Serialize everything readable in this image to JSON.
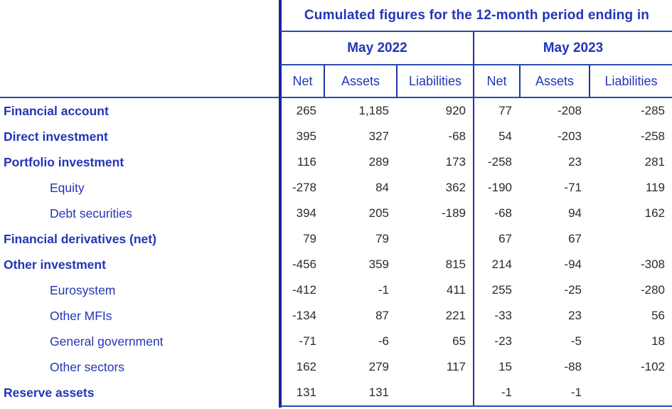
{
  "table": {
    "title": "Cumulated figures for the 12-month period ending in",
    "column_groups": [
      {
        "label": "May 2022"
      },
      {
        "label": "May 2023"
      }
    ],
    "sub_columns": [
      "Net",
      "Assets",
      "Liabilities",
      "Net",
      "Assets",
      "Liabilities"
    ],
    "rows": [
      {
        "label": "Financial account",
        "bold": true,
        "indent": false,
        "values": [
          "265",
          "1,185",
          "920",
          "77",
          "-208",
          "-285"
        ]
      },
      {
        "label": "Direct investment",
        "bold": true,
        "indent": false,
        "values": [
          "395",
          "327",
          "-68",
          "54",
          "-203",
          "-258"
        ]
      },
      {
        "label": "Portfolio investment",
        "bold": true,
        "indent": false,
        "values": [
          "116",
          "289",
          "173",
          "-258",
          "23",
          "281"
        ]
      },
      {
        "label": "Equity",
        "bold": false,
        "indent": true,
        "values": [
          "-278",
          "84",
          "362",
          "-190",
          "-71",
          "119"
        ]
      },
      {
        "label": "Debt securities",
        "bold": false,
        "indent": true,
        "values": [
          "394",
          "205",
          "-189",
          "-68",
          "94",
          "162"
        ]
      },
      {
        "label": "Financial derivatives (net)",
        "bold": true,
        "indent": false,
        "values": [
          "79",
          "79",
          "",
          "67",
          "67",
          ""
        ]
      },
      {
        "label": "Other investment",
        "bold": true,
        "indent": false,
        "values": [
          "-456",
          "359",
          "815",
          "214",
          "-94",
          "-308"
        ]
      },
      {
        "label": "Eurosystem",
        "bold": false,
        "indent": true,
        "values": [
          "-412",
          "-1",
          "411",
          "255",
          "-25",
          "-280"
        ]
      },
      {
        "label": "Other MFIs",
        "bold": false,
        "indent": true,
        "values": [
          "-134",
          "87",
          "221",
          "-33",
          "23",
          "56"
        ]
      },
      {
        "label": "General government",
        "bold": false,
        "indent": true,
        "values": [
          "-71",
          "-6",
          "65",
          "-23",
          "-5",
          "18"
        ]
      },
      {
        "label": "Other sectors",
        "bold": false,
        "indent": true,
        "values": [
          "162",
          "279",
          "117",
          "15",
          "-88",
          "-102"
        ]
      },
      {
        "label": "Reserve assets",
        "bold": true,
        "indent": false,
        "values": [
          "131",
          "131",
          "",
          "-1",
          "-1",
          ""
        ]
      }
    ],
    "colors": {
      "text_blue": "#2335B5",
      "number_text": "#2b2b2b",
      "border_blue": "#1F359E",
      "border_thick": "#14259B"
    }
  }
}
